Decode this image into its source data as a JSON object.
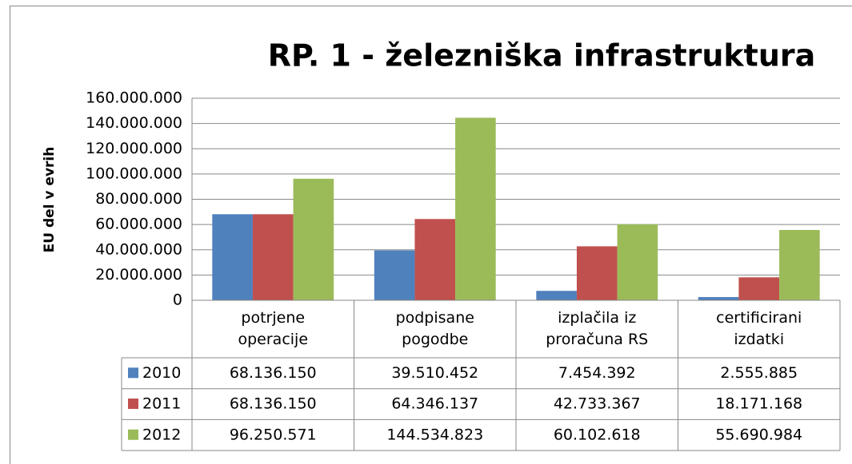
{
  "chart_data": {
    "type": "bar",
    "title": "RP. 1 - železniška infrastruktura",
    "y_label": "EU del v evrih",
    "categories": [
      "potrjene\noperacije",
      "podpisane\npogodbe",
      "izplačila iz\nproračuna RS",
      "certificirani\nizdatki"
    ],
    "series": [
      {
        "name": "2010",
        "color": "#4f81bd",
        "values": [
          68136150,
          39510452,
          7454392,
          2555885
        ],
        "value_labels": [
          "68.136.150",
          "39.510.452",
          "7.454.392",
          "2.555.885"
        ]
      },
      {
        "name": "2011",
        "color": "#c0504d",
        "values": [
          68136150,
          64346137,
          42733367,
          18171168
        ],
        "value_labels": [
          "68.136.150",
          "64.346.137",
          "42.733.367",
          "18.171.168"
        ]
      },
      {
        "name": "2012",
        "color": "#9bbb59",
        "values": [
          96250571,
          144534823,
          60102618,
          55690984
        ],
        "value_labels": [
          "96.250.571",
          "144.534.823",
          "60.102.618",
          "55.690.984"
        ]
      }
    ],
    "ylim": [
      0,
      160000000
    ],
    "yticks": [
      0,
      {
        "value": 20000000,
        "label": "20.000.000"
      },
      {
        "value": 40000000,
        "label": "40.000.000"
      },
      {
        "value": 60000000,
        "label": "60.000.000"
      },
      {
        "value": 80000000,
        "label": "80.000.000"
      },
      {
        "value": 100000000,
        "label": "100.000.000"
      },
      {
        "value": 120000000,
        "label": "120.000.000"
      },
      {
        "value": 140000000,
        "label": "140.000.000"
      },
      {
        "value": 160000000,
        "label": "160.000.000"
      }
    ],
    "grid": true
  }
}
